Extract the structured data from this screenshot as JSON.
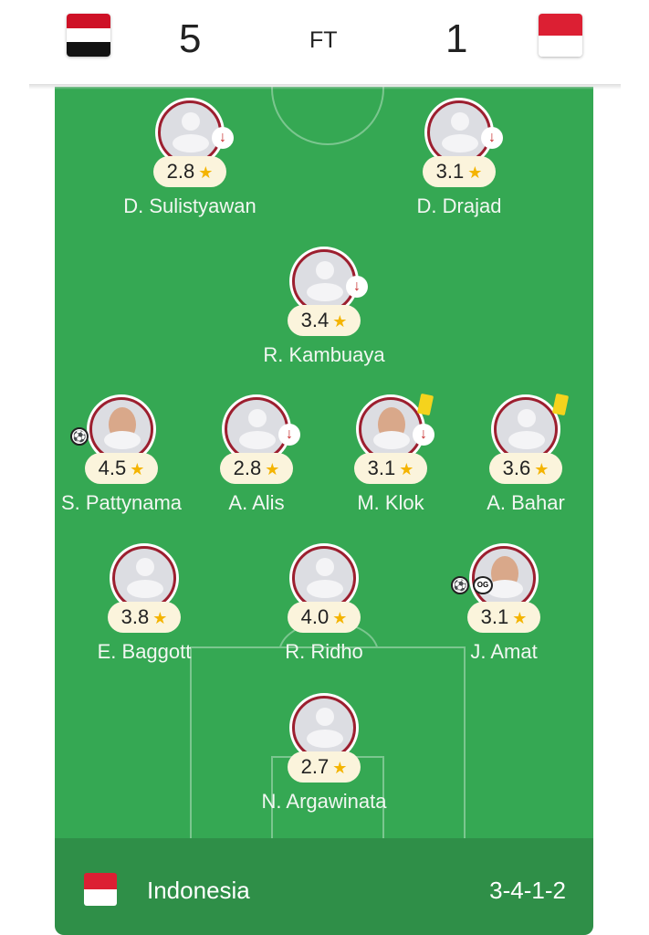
{
  "header": {
    "home_score": "5",
    "status": "FT",
    "away_score": "1",
    "home_flag_icon": "iraq-flag-icon",
    "away_flag_icon": "indonesia-flag-icon"
  },
  "colors": {
    "pitch": "#35a853",
    "bottom_bar": "#2f8f48",
    "avatar_border": "#9c1f2f",
    "rating_bg": "#fbf4dc",
    "star": "#f4b400",
    "yellow_card": "#f5d31d"
  },
  "players": [
    {
      "name": "D. Sulistyawan",
      "rating": "2.8",
      "icons": [
        "substitution-out-icon"
      ]
    },
    {
      "name": "D. Drajad",
      "rating": "3.1",
      "icons": [
        "substitution-out-icon"
      ]
    },
    {
      "name": "R. Kambuaya",
      "rating": "3.4",
      "icons": [
        "substitution-out-icon"
      ]
    },
    {
      "name": "S. Pattynama",
      "rating": "4.5",
      "icons": [
        "goal-ball-icon"
      ],
      "photo": true
    },
    {
      "name": "A. Alis",
      "rating": "2.8",
      "icons": [
        "substitution-out-icon"
      ]
    },
    {
      "name": "M. Klok",
      "rating": "3.1",
      "icons": [
        "yellow-card-icon",
        "substitution-out-icon"
      ],
      "photo": true
    },
    {
      "name": "A. Bahar",
      "rating": "3.6",
      "icons": [
        "yellow-card-icon"
      ]
    },
    {
      "name": "E. Baggott",
      "rating": "3.8",
      "icons": []
    },
    {
      "name": "R. Ridho",
      "rating": "4.0",
      "icons": []
    },
    {
      "name": "J. Amat",
      "rating": "3.1",
      "icons": [
        "own-goal-icon"
      ],
      "og_label": "OG",
      "photo": true
    },
    {
      "name": "N. Argawinata",
      "rating": "2.7",
      "icons": []
    }
  ],
  "footer": {
    "team": "Indonesia",
    "formation": "3-4-1-2",
    "flag_icon": "indonesia-flag-icon"
  }
}
